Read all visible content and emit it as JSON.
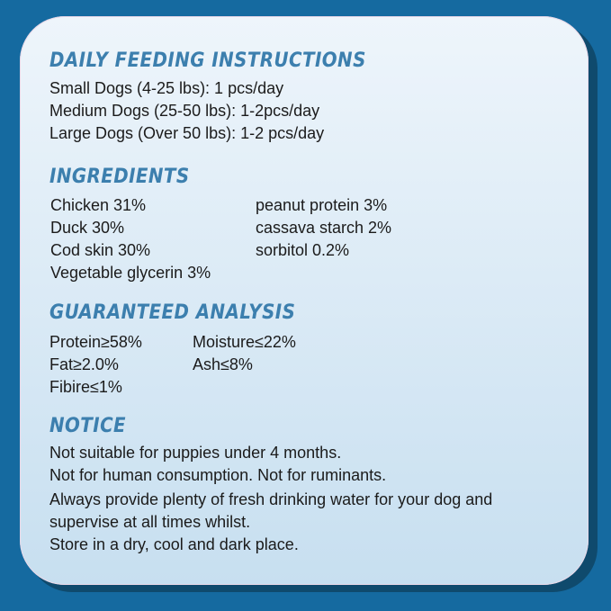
{
  "feeding": {
    "title": "DAILY FEEDING INSTRUCTIONS",
    "lines": [
      "Small Dogs (4-25 lbs): 1 pcs/day",
      "Medium Dogs (25-50 lbs): 1-2pcs/day",
      "Large Dogs (Over 50 lbs): 1-2 pcs/day"
    ]
  },
  "ingredients": {
    "title": "INGREDIENTS",
    "col1": [
      "Chicken 31%",
      "Duck 30%",
      "Cod skin 30%",
      "Vegetable glycerin 3%"
    ],
    "col2": [
      "peanut protein 3%",
      "cassava starch 2%",
      "sorbitol 0.2%"
    ]
  },
  "analysis": {
    "title": "GUARANTEED ANALYSIS",
    "col1": [
      "Protein≥58%",
      "Fat≥2.0%",
      "Fibire≤1%"
    ],
    "col2": [
      "Moisture≤22%",
      "Ash≤8%"
    ]
  },
  "notice": {
    "title": "NOTICE",
    "lines": [
      "Not suitable for puppies under 4 months.",
      "Not for human consumption. Not for ruminants.",
      "Always provide plenty of fresh drinking water for your dog and",
      "supervise at all times whilst.",
      "Store in a dry, cool and dark place."
    ]
  },
  "colors": {
    "background": "#156aa0",
    "heading": "#3c7fae",
    "card": "#e4f0f9"
  }
}
